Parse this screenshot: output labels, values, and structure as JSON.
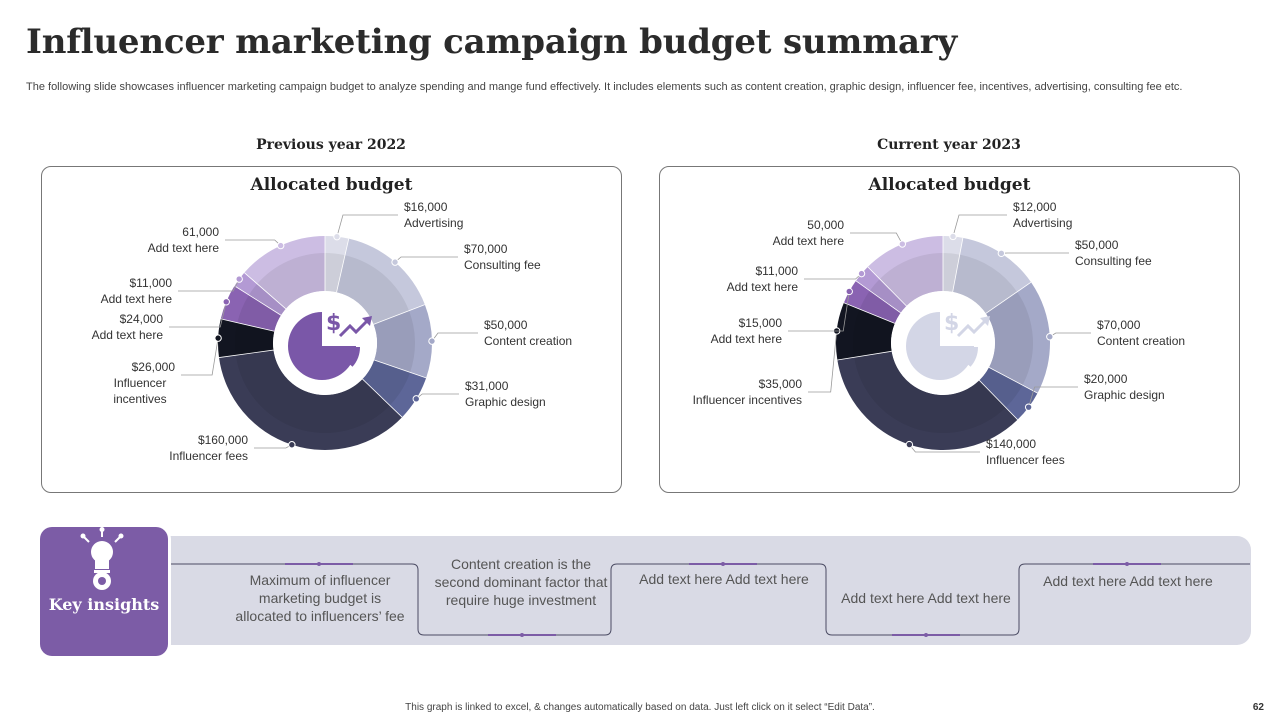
{
  "title": "Influencer marketing campaign budget summary",
  "subtitle": "The following slide showcases influencer marketing campaign budget to analyze spending and mange fund effectively. It includes elements such as content creation, graphic design, influencer fee, incentives, advertising, consulting fee etc.",
  "chart_data": [
    {
      "type": "pie",
      "heading": "Previous year 2022",
      "title": "Allocated budget",
      "categories": [
        "Advertising",
        "Consulting fee",
        "Content creation",
        "Graphic design",
        "Influencer fees",
        "Influencer incentives",
        "Add text here",
        "Add text here",
        "Add text here"
      ],
      "labels": [
        {
          "value": "$16,000",
          "name": "Advertising"
        },
        {
          "value": "$70,000",
          "name": "Consulting fee"
        },
        {
          "value": "$50,000",
          "name": "Content creation"
        },
        {
          "value": "$31,000",
          "name": "Graphic design"
        },
        {
          "value": "$160,000",
          "name": "Influencer fees"
        },
        {
          "value": "$26,000",
          "name": "Influencer incentives"
        },
        {
          "value": "$24,000",
          "name": "Add text here"
        },
        {
          "value": "$11,000",
          "name": "Add text here"
        },
        {
          "value": "61,000",
          "name": "Add text here"
        }
      ],
      "values": [
        16000,
        70000,
        50000,
        31000,
        160000,
        26000,
        24000,
        11000,
        61000
      ],
      "colors": [
        "#dcdde9",
        "#c5c8dc",
        "#a4a9c8",
        "#5d6698",
        "#3a3c56",
        "#121521",
        "#8a63b2",
        "#b39ad4",
        "#ccbde3"
      ]
    },
    {
      "type": "pie",
      "heading": "Current year 2023",
      "title": "Allocated budget",
      "categories": [
        "Advertising",
        "Consulting fee",
        "Content creation",
        "Graphic design",
        "Influencer fees",
        "Influencer incentives",
        "Add text here",
        "Add text here",
        "Add text here"
      ],
      "labels": [
        {
          "value": "$12,000",
          "name": "Advertising"
        },
        {
          "value": "$50,000",
          "name": "Consulting fee"
        },
        {
          "value": "$70,000",
          "name": "Content creation"
        },
        {
          "value": "$20,000",
          "name": "Graphic design"
        },
        {
          "value": "$140,000",
          "name": "Influencer fees"
        },
        {
          "value": "$35,000",
          "name": "Influencer incentives"
        },
        {
          "value": "$15,000",
          "name": "Add text here"
        },
        {
          "value": "$11,000",
          "name": "Add text here"
        },
        {
          "value": "50,000",
          "name": "Add text here"
        }
      ],
      "values": [
        12000,
        50000,
        70000,
        20000,
        140000,
        35000,
        15000,
        11000,
        50000
      ],
      "colors": [
        "#dcdde9",
        "#c5c8dc",
        "#a4a9c8",
        "#5d6698",
        "#3a3c56",
        "#121521",
        "#8a63b2",
        "#b39ad4",
        "#ccbde3"
      ]
    }
  ],
  "insights": {
    "title": "Key insights",
    "items": [
      "Maximum of influencer marketing budget is allocated to influencers’ fee",
      "Content creation is the second dominant factor that require huge investment",
      "Add text here Add text here",
      "Add text here Add text here",
      "Add text here Add text here"
    ]
  },
  "footer": "This graph is linked to excel, & changes automatically based on data. Just left click on it select “Edit Data”.",
  "page_number": "62"
}
